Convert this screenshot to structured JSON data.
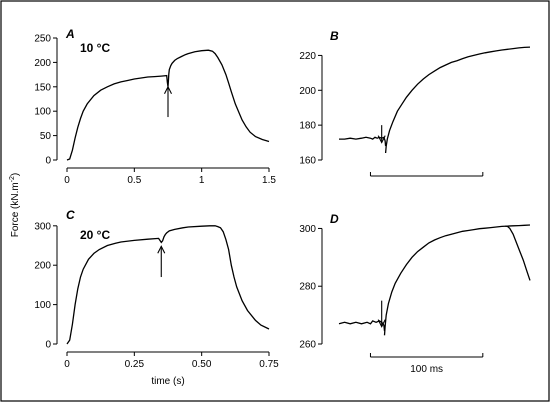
{
  "figure": {
    "ylabel": "Force (kN.m",
    "ylabel_sup": "-2",
    "ylabel_end": ")"
  },
  "chart_data": [
    {
      "id": "A",
      "type": "line",
      "panel_label": "A",
      "annotation": "10 °C",
      "xlabel": "",
      "xlim": [
        0,
        1.5
      ],
      "ylim": [
        0,
        250
      ],
      "xticks": [
        0,
        0.5,
        1,
        1.5
      ],
      "xtick_labels": [
        "0",
        "0.5",
        "1",
        "1.5"
      ],
      "yticks": [
        0,
        50,
        100,
        150,
        200,
        250
      ],
      "ytick_labels": [
        "0",
        "50",
        "100",
        "150",
        "200",
        "250"
      ],
      "arrow": {
        "direction": "up",
        "x": 0.75,
        "y_tip": 150,
        "y_tail": 88
      },
      "series": [
        {
          "x": [
            0,
            0.02,
            0.04,
            0.06,
            0.08,
            0.1,
            0.12,
            0.15,
            0.2,
            0.25,
            0.3,
            0.35,
            0.4,
            0.45,
            0.5,
            0.55,
            0.6,
            0.65,
            0.7,
            0.74,
            0.745,
            0.75,
            0.753,
            0.756,
            0.76,
            0.77,
            0.78,
            0.8,
            0.82,
            0.85,
            0.88,
            0.9,
            0.95,
            1.0,
            1.05,
            1.08,
            1.1,
            1.12,
            1.15,
            1.18,
            1.2,
            1.22,
            1.25,
            1.28,
            1.3,
            1.33,
            1.36,
            1.4,
            1.45,
            1.5
          ],
          "y": [
            0,
            2,
            20,
            45,
            67,
            85,
            100,
            115,
            132,
            143,
            150,
            156,
            160,
            163,
            166,
            168,
            170,
            171,
            172,
            173,
            160,
            150,
            162,
            176,
            185,
            193,
            198,
            204,
            208,
            212,
            216,
            218,
            222,
            224,
            225,
            223,
            218,
            210,
            195,
            175,
            158,
            140,
            115,
            95,
            82,
            68,
            57,
            48,
            42,
            38
          ]
        }
      ]
    },
    {
      "id": "B",
      "type": "line",
      "panel_label": "B",
      "annotation": "",
      "xlabel": "",
      "xlim": [
        0,
        170
      ],
      "ylim": [
        160,
        230
      ],
      "yticks": [
        160,
        180,
        200,
        220
      ],
      "ytick_labels": [
        "160",
        "180",
        "200",
        "220"
      ],
      "scale_bar": {
        "label": "",
        "length_ms": 100,
        "x_start": 28
      },
      "arrow": {
        "direction": "down",
        "x": 38,
        "y_tip": 170,
        "y_tail": 180
      },
      "series": [
        {
          "x": [
            0,
            5,
            10,
            15,
            20,
            24,
            28,
            30,
            32,
            34,
            36,
            38,
            40,
            41,
            41.5
          ],
          "y": [
            172,
            172,
            172.5,
            172,
            172.5,
            173,
            172.5,
            172,
            173,
            172.5,
            173,
            172.5,
            173,
            171,
            168
          ]
        },
        {
          "x": [
            41.5,
            42,
            43,
            45,
            48,
            52,
            56,
            60,
            65,
            70,
            75,
            80,
            85,
            90,
            95,
            100,
            105,
            110,
            115,
            120,
            125,
            130,
            135,
            140,
            145,
            150,
            155,
            160,
            165,
            170
          ],
          "y": [
            164,
            168,
            172,
            177,
            182,
            188,
            192,
            196,
            200,
            203.5,
            206.5,
            209,
            211,
            213,
            214.5,
            216,
            217,
            218.2,
            219.2,
            220,
            220.8,
            221.5,
            222.1,
            222.6,
            223.1,
            223.5,
            223.9,
            224.3,
            224.6,
            224.8
          ]
        }
      ]
    },
    {
      "id": "C",
      "type": "line",
      "panel_label": "C",
      "annotation": "20 °C",
      "xlabel": "time (s)",
      "xlim": [
        0,
        0.75
      ],
      "ylim": [
        0,
        330
      ],
      "xticks": [
        0,
        0.25,
        0.5,
        0.75
      ],
      "xtick_labels": [
        "0",
        "0.25",
        "0.50",
        "0.75"
      ],
      "yticks": [
        0,
        100,
        200,
        300
      ],
      "ytick_labels": [
        "0",
        "100",
        "200",
        "300"
      ],
      "arrow": {
        "direction": "up",
        "x": 0.35,
        "y_tip": 248,
        "y_tail": 170
      },
      "series": [
        {
          "x": [
            0,
            0.01,
            0.02,
            0.03,
            0.04,
            0.05,
            0.06,
            0.08,
            0.1,
            0.12,
            0.15,
            0.18,
            0.2,
            0.25,
            0.3,
            0.34,
            0.35,
            0.355,
            0.36,
            0.365,
            0.37,
            0.38,
            0.4,
            0.43,
            0.45,
            0.5,
            0.53,
            0.55,
            0.56,
            0.57,
            0.58,
            0.59,
            0.6,
            0.61,
            0.62,
            0.63,
            0.65,
            0.67,
            0.7,
            0.72,
            0.75
          ],
          "y": [
            0,
            10,
            50,
            100,
            140,
            170,
            190,
            215,
            230,
            240,
            250,
            256,
            259,
            263,
            266,
            268,
            258,
            262,
            272,
            278,
            282,
            287,
            291,
            295,
            297,
            299,
            300,
            300,
            298,
            295,
            285,
            265,
            240,
            200,
            170,
            145,
            110,
            85,
            60,
            48,
            38
          ]
        }
      ]
    },
    {
      "id": "D",
      "type": "line",
      "panel_label": "D",
      "annotation": "",
      "xlabel": "",
      "xlim": [
        0,
        170
      ],
      "ylim": [
        260,
        305
      ],
      "yticks": [
        260,
        280,
        300
      ],
      "ytick_labels": [
        "260",
        "280",
        "300"
      ],
      "scale_bar": {
        "label": "100 ms",
        "length_ms": 100,
        "x_start": 28
      },
      "arrow": {
        "direction": "down",
        "x": 38,
        "y_tip": 266,
        "y_tail": 275
      },
      "series": [
        {
          "x": [
            0,
            5,
            10,
            15,
            20,
            25,
            28,
            30,
            33,
            36,
            38,
            40,
            40.5
          ],
          "y": [
            267,
            267.5,
            267,
            267.5,
            267,
            267.5,
            267,
            268,
            267.5,
            268,
            267.5,
            266.5,
            264.5
          ]
        },
        {
          "x": [
            40.5,
            41,
            42,
            44,
            47,
            50,
            55,
            60,
            65,
            70,
            75,
            80,
            85,
            90,
            95,
            100,
            105,
            110,
            115,
            120,
            125,
            130,
            135,
            140,
            145,
            150,
            155,
            160,
            165,
            170
          ],
          "y": [
            263,
            266,
            270,
            274,
            278,
            281,
            284.5,
            287.5,
            290,
            292,
            293.5,
            295,
            296,
            296.8,
            297.5,
            298,
            298.5,
            299,
            299.3,
            299.6,
            299.9,
            300.1,
            300.3,
            300.5,
            300.7,
            300.8,
            300.9,
            301,
            301.1,
            301.2
          ]
        },
        {
          "x": [
            148,
            150,
            152,
            155,
            158,
            161,
            164,
            167,
            170
          ],
          "y": [
            300.8,
            300.7,
            300,
            298,
            295,
            292,
            289,
            285.5,
            282
          ]
        }
      ]
    }
  ]
}
